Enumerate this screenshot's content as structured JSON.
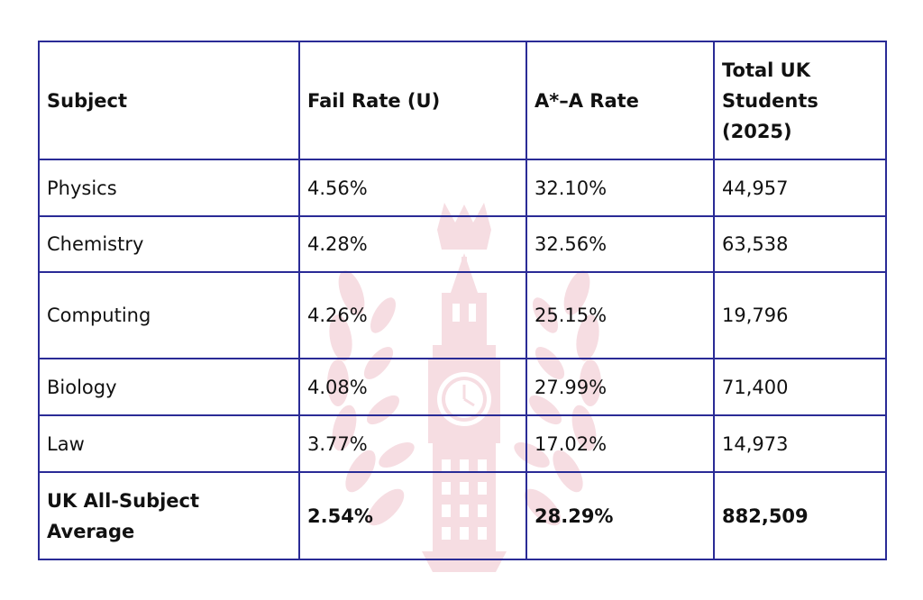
{
  "table": {
    "headers": [
      "Subject",
      "Fail Rate (U)",
      "A*–A Rate",
      "Total UK Students (2025)"
    ],
    "rows": [
      [
        "Physics",
        "4.56%",
        "32.10%",
        "44,957"
      ],
      [
        "Chemistry",
        "4.28%",
        "32.56%",
        "63,538"
      ],
      [
        "Computing",
        "4.26%",
        "25.15%",
        "19,796"
      ],
      [
        "Biology",
        "4.08%",
        "27.99%",
        "71,400"
      ],
      [
        "Law",
        "3.77%",
        "17.02%",
        "14,973"
      ]
    ],
    "average_row": [
      "UK All-Subject Average",
      "2.54%",
      "28.29%",
      "882,509"
    ]
  },
  "colors": {
    "border": "#2a2b96",
    "watermark": "#f6dde2"
  },
  "watermark": {
    "icon": "clock-tower-laurel-crest-icon"
  }
}
